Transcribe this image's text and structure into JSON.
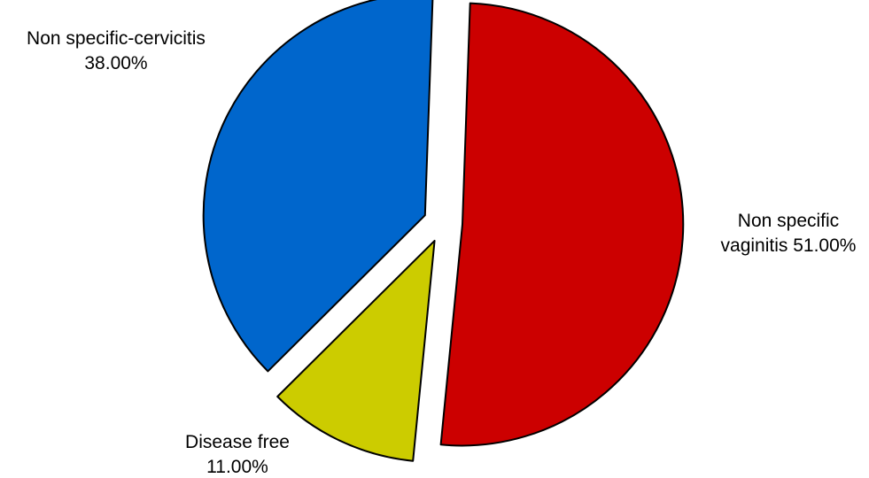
{
  "chart_data": {
    "type": "pie",
    "slices": [
      {
        "label_lines": [
          "Non specific",
          "vaginitis 51.00%"
        ],
        "category": "Non specific vaginitis",
        "value": 51.0,
        "color": "#cc0000"
      },
      {
        "label_lines": [
          "Disease free",
          "11.00%"
        ],
        "category": "Disease free",
        "value": 11.0,
        "color": "#cccc00"
      },
      {
        "label_lines": [
          "Non specific-cervicitis",
          "38.00%"
        ],
        "category": "Non specific-cervicitis",
        "value": 38.0,
        "color": "#0066cc"
      }
    ],
    "legend": "none"
  }
}
